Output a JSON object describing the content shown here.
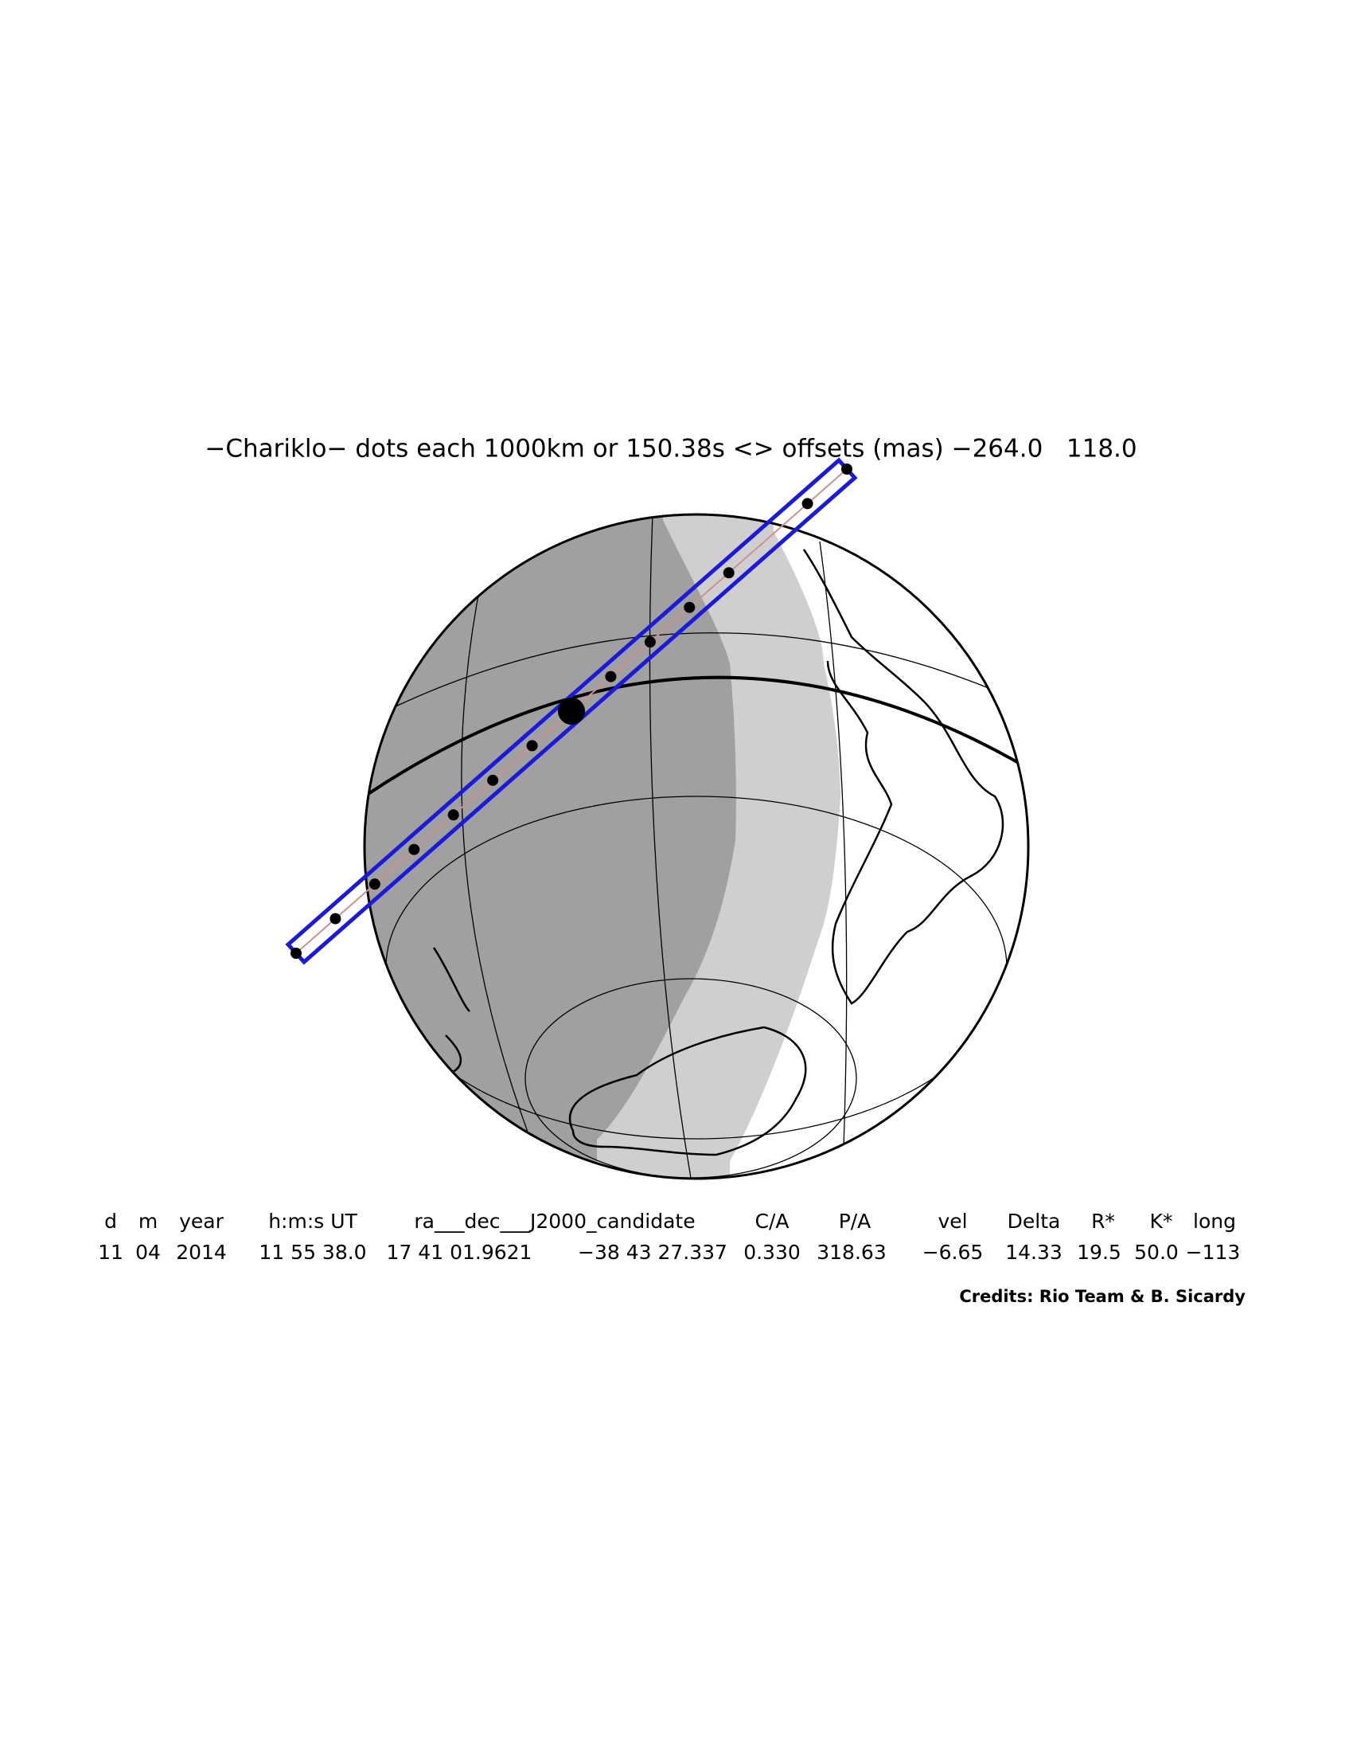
{
  "title": "−Chariklo− dots each 1000km or 150.38s <> offsets (mas) −264.0   118.0",
  "table": {
    "headers": [
      "d",
      "m",
      "year",
      "h:m:s UT",
      "ra___dec___J2000_candidate",
      "C/A",
      "P/A",
      "vel",
      "Delta",
      "R*",
      "K*",
      "long"
    ],
    "rows": [
      [
        "11",
        "04",
        "2014",
        "11 55 38.0",
        "17 41 01.9621",
        "−38 43 27.337",
        "0.330",
        "318.63",
        "−6.65",
        "14.33",
        "19.5",
        "50.0",
        "−113"
      ]
    ]
  },
  "credits": "Credits: Rio Team & B. Sicardy"
}
